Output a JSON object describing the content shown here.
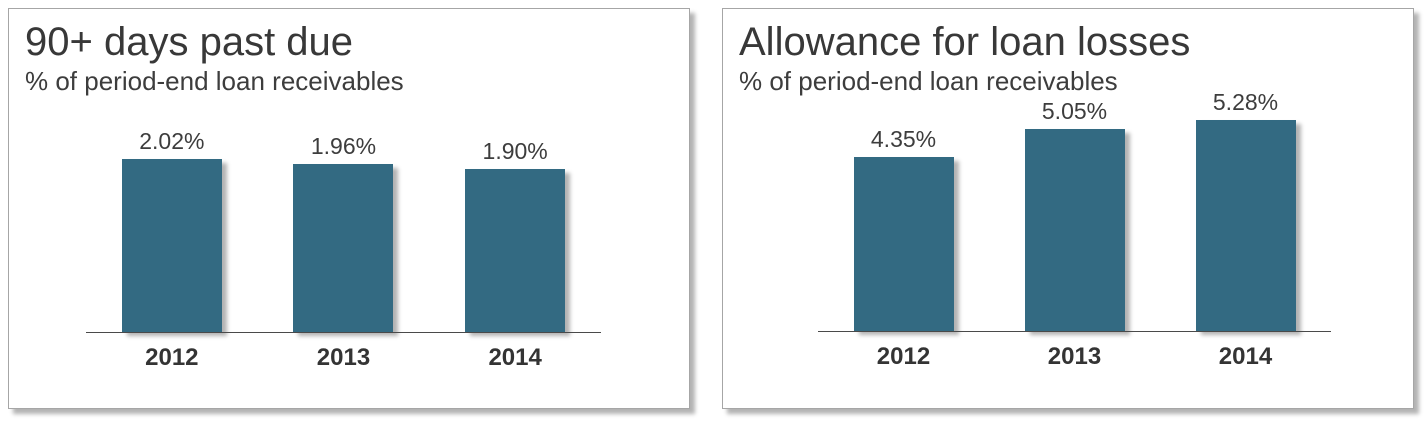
{
  "page": {
    "background": "#ffffff"
  },
  "colors": {
    "bar": "#336A82",
    "panel_border": "#a6a6a6",
    "text_dark": "#383838",
    "axis": "#4a4a4a"
  },
  "chart_data": [
    {
      "type": "bar",
      "title": "90+ days past due",
      "subtitle": "% of period-end loan receivables",
      "categories": [
        "2012",
        "2013",
        "2014"
      ],
      "values": [
        2.02,
        1.96,
        1.9
      ],
      "value_labels": [
        "2.02%",
        "1.96%",
        "1.90%"
      ],
      "unit": "%",
      "ylim": [
        0,
        2.8
      ],
      "grid": false,
      "legend": "none",
      "bar_color": "#336A82"
    },
    {
      "type": "bar",
      "title": "Allowance for loan losses",
      "subtitle": "% of period-end loan receivables",
      "categories": [
        "2012",
        "2013",
        "2014"
      ],
      "values": [
        4.35,
        5.05,
        5.28
      ],
      "value_labels": [
        "4.35%",
        "5.05%",
        "5.28%"
      ],
      "unit": "%",
      "ylim": [
        0,
        6.0
      ],
      "grid": false,
      "legend": "none",
      "bar_color": "#336A82"
    }
  ]
}
